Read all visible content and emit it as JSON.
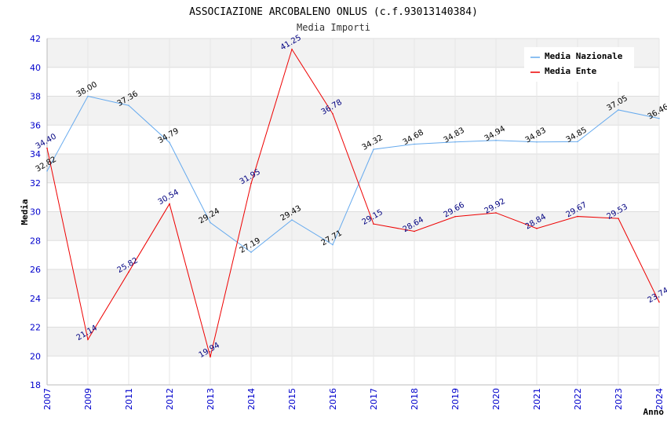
{
  "chart_data": {
    "type": "line",
    "title": "ASSOCIAZIONE ARCOBALENO ONLUS (c.f.93013140384)",
    "subtitle": "Media Importi",
    "xlabel": "Anno",
    "ylabel": "Media",
    "ylim": [
      18,
      42
    ],
    "y_ticks": [
      "18",
      "20",
      "22",
      "24",
      "26",
      "28",
      "30",
      "32",
      "34",
      "36",
      "38",
      "40",
      "42"
    ],
    "categories": [
      "2007",
      "2009",
      "2011",
      "2012",
      "2013",
      "2014",
      "2015",
      "2016",
      "2017",
      "2018",
      "2019",
      "2020",
      "2021",
      "2022",
      "2023",
      "2024"
    ],
    "legend_position": "top-right",
    "series": [
      {
        "name": "Media Nazionale",
        "color": "#66aaee",
        "label_color": "#000000",
        "values": [
          32.82,
          38.0,
          37.36,
          34.79,
          29.24,
          27.19,
          29.43,
          27.71,
          34.32,
          34.68,
          34.83,
          34.94,
          34.83,
          34.85,
          37.05,
          36.46
        ],
        "labels": [
          "32.82",
          "38.00",
          "37.36",
          "34.79",
          "29.24",
          "27.19",
          "29.43",
          "27.71",
          "34.32",
          "34.68",
          "34.83",
          "34.94",
          "34.83",
          "34.85",
          "37.05",
          "36.46"
        ]
      },
      {
        "name": "Media Ente",
        "color": "#ee0000",
        "label_color": "#000080",
        "values": [
          34.4,
          21.14,
          25.82,
          30.54,
          19.94,
          31.95,
          41.25,
          36.78,
          29.15,
          28.64,
          29.66,
          29.92,
          28.84,
          29.67,
          29.53,
          23.74
        ],
        "labels": [
          "34.40",
          "21.14",
          "25.82",
          "30.54",
          "19.94",
          "31.95",
          "41.25",
          "36.78",
          "29.15",
          "28.64",
          "29.66",
          "29.92",
          "28.84",
          "29.67",
          "29.53",
          "23.74"
        ]
      }
    ]
  }
}
